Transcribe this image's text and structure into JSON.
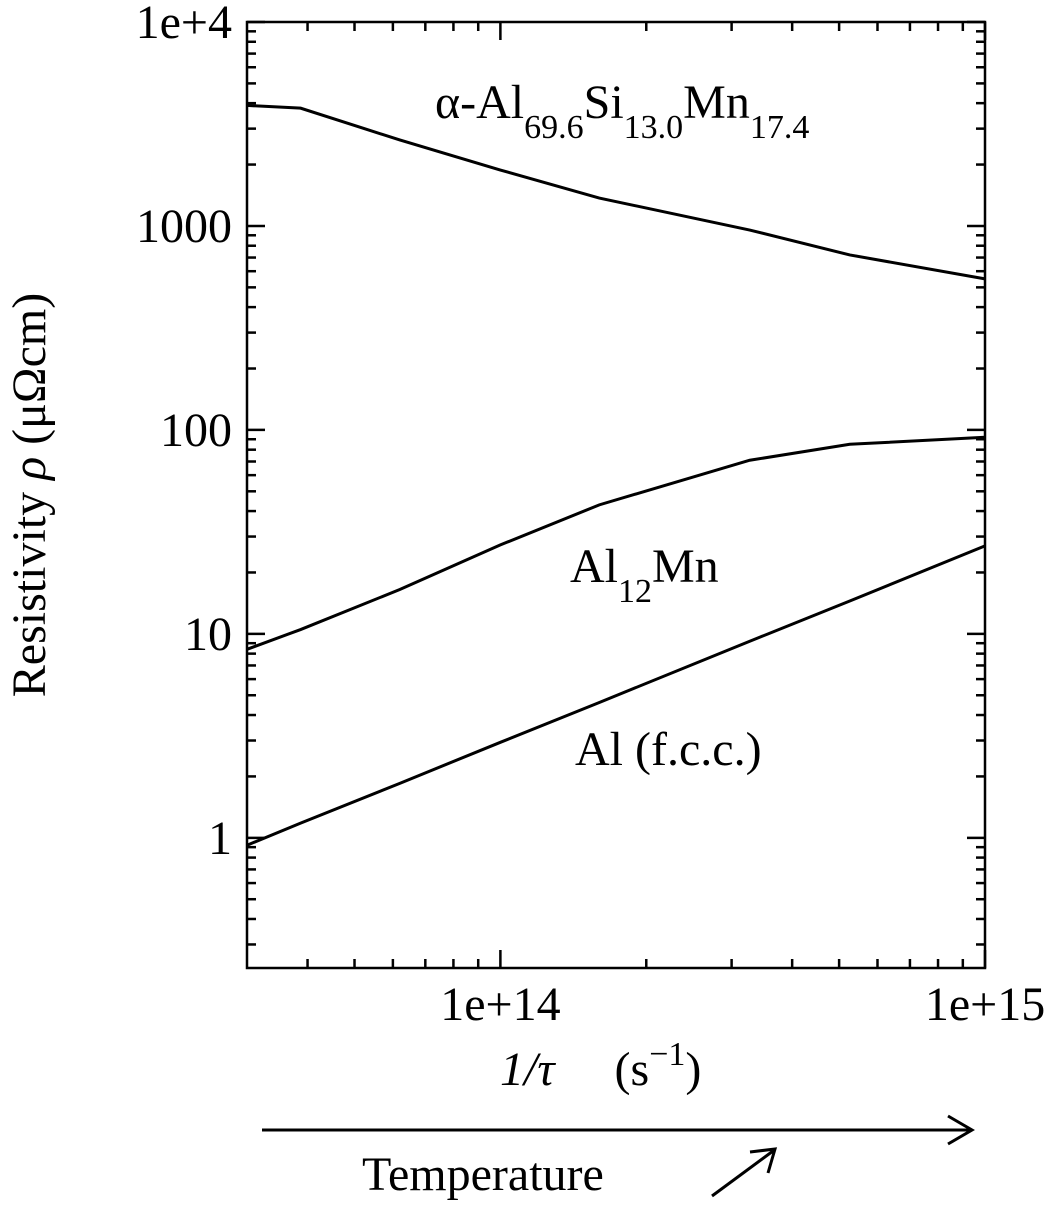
{
  "chart_data": {
    "type": "line",
    "x": [
      30000000000000.0,
      38700000000000.0,
      62000000000000.0,
      100000000000000.0,
      160000000000000.0,
      327000000000000.0,
      526000000000000.0,
      1000000000000000.0
    ],
    "series": [
      {
        "label": [
          {
            "text": "α-Al"
          },
          {
            "text": "69.6",
            "sub": true
          },
          {
            "text": "Si"
          },
          {
            "text": "13.0",
            "sub": true
          },
          {
            "text": "Mn"
          },
          {
            "text": "17.4",
            "sub": true
          }
        ],
        "color": "#000000",
        "values": [
          3900,
          3780,
          2640,
          1880,
          1370,
          955,
          721,
          550
        ]
      },
      {
        "label": [
          {
            "text": "Al"
          },
          {
            "text": "12",
            "sub": true
          },
          {
            "text": "Mn"
          }
        ],
        "color": "#000000",
        "values": [
          8.4,
          10.5,
          16.5,
          27.3,
          42.9,
          71,
          85,
          92
        ]
      },
      {
        "label": [
          {
            "text": "Al (f.c.c.)"
          }
        ],
        "color": "#000000",
        "values": [
          0.92,
          1.18,
          1.85,
          2.94,
          4.61,
          9.2,
          14.5,
          27
        ]
      }
    ],
    "xscale": "log",
    "yscale": "log",
    "xlim": [
      30000000000000.0,
      1000000000000000.0
    ],
    "xticks": [
      {
        "value": 100000000000000.0,
        "label": "1e+14"
      },
      {
        "value": 1000000000000000.0,
        "label": "1e+15"
      }
    ],
    "xminorticks": [
      40000000000000.0,
      50000000000000.0,
      60000000000000.0,
      70000000000000.0,
      80000000000000.0,
      90000000000000.0,
      200000000000000.0,
      300000000000000.0,
      400000000000000.0,
      500000000000000.0,
      600000000000000.0,
      700000000000000.0,
      800000000000000.0,
      900000000000000.0
    ],
    "ylim": [
      0.23,
      10000
    ],
    "yticks": [
      1,
      10,
      100,
      1000,
      {
        "value": 10000,
        "label": "1e+4"
      }
    ],
    "yminorticks": [
      0.3,
      0.4,
      0.5,
      0.6,
      0.7,
      0.8,
      0.9,
      2,
      3,
      4,
      5,
      6,
      7,
      8,
      9,
      20,
      30,
      40,
      50,
      60,
      70,
      80,
      90,
      200,
      300,
      400,
      500,
      600,
      700,
      800,
      900,
      2000,
      3000,
      4000,
      5000,
      6000,
      7000,
      8000,
      9000
    ],
    "xlabel": [
      {
        "text": "1/τ",
        "italic": true
      },
      {
        "text": "(s"
      },
      {
        "text": "−1",
        "sup": true
      },
      {
        "text": ")"
      }
    ],
    "ylabel": [
      {
        "text": "Resistivity "
      },
      {
        "text": "ρ",
        "italic": true
      },
      {
        "text": "  (μΩcm)"
      }
    ],
    "annotation": "Temperature"
  }
}
